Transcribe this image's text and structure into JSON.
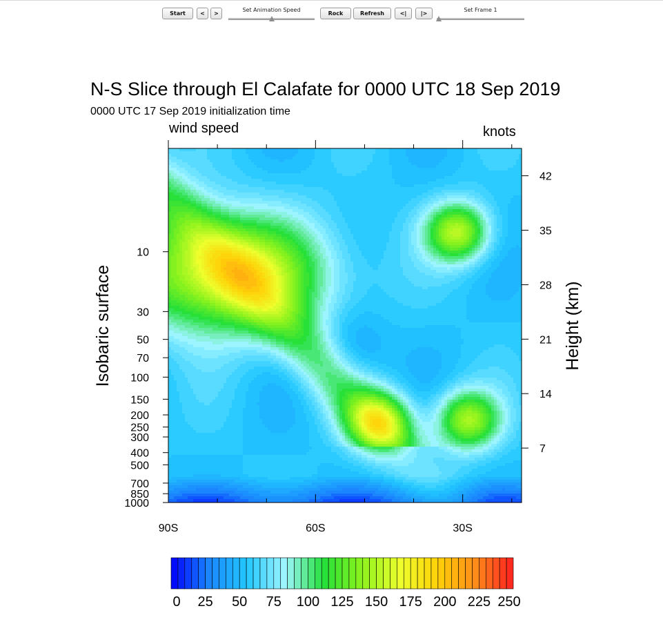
{
  "toolbar": {
    "start_label": "Start",
    "prev_label": "<",
    "next_label": ">",
    "speed_label": "Set Animation Speed",
    "speed_value": 0.5,
    "rock_label": "Rock",
    "refresh_label": "Refresh",
    "first_label": "<|",
    "last_label": "|>",
    "frame_label": "Set Frame 1",
    "frame_value": 0.0
  },
  "chart_data": {
    "type": "heatmap",
    "title": "N-S Slice through El Calafate for 0000 UTC 18 Sep 2019",
    "subtitle": "0000 UTC 17 Sep 2019 initialization time",
    "left_label": "wind speed",
    "right_label": "knots",
    "ylabel": "Isobaric surface",
    "y2label": "Height (km)",
    "x_ticks": [
      "90S",
      "60S",
      "30S"
    ],
    "y_ticks": [
      "10",
      "30",
      "50",
      "70",
      "100",
      "150",
      "200",
      "250",
      "300",
      "400",
      "500",
      "700",
      "850",
      "1000"
    ],
    "y2_ticks": [
      "7",
      "14",
      "21",
      "28",
      "35",
      "42"
    ],
    "colorbar_labels": [
      "0",
      "25",
      "50",
      "75",
      "100",
      "125",
      "150",
      "175",
      "200",
      "225",
      "250"
    ],
    "colorbar_range": [
      0,
      250
    ],
    "colorbar_step": 5,
    "jets": [
      {
        "lat": -78,
        "level_hpa": 15,
        "peak_kt": 170
      },
      {
        "lat": -47,
        "level_hpa": 230,
        "peak_kt": 150
      },
      {
        "lat": -31,
        "level_hpa": 7,
        "peak_kt": 155
      },
      {
        "lat": -29,
        "level_hpa": 220,
        "peak_kt": 150
      }
    ],
    "colors": {
      "stops": [
        "#0000ff",
        "#1a86ff",
        "#22c8ff",
        "#9ff5ff",
        "#23e039",
        "#8af21d",
        "#ecff2d",
        "#ffd208",
        "#ff8c1a",
        "#ff2020"
      ]
    }
  }
}
